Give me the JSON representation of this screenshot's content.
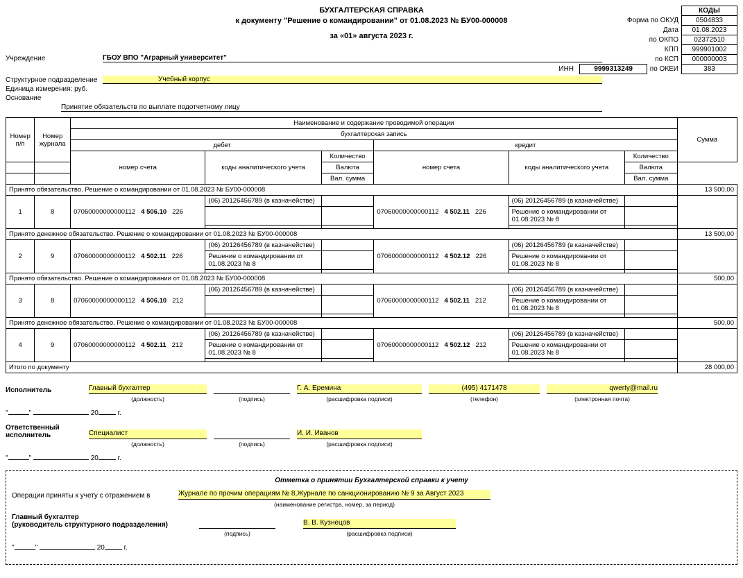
{
  "title": {
    "line1": "БУХГАЛТЕРСКАЯ СПРАВКА",
    "line2": "к документу \"Решение о командировании\" от 01.08.2023 № БУ00-000008",
    "line3": "за «01» августа 2023 г."
  },
  "codes": {
    "header": "КОДЫ",
    "okud_label": "Форма по ОКУД",
    "okud": "0504833",
    "date_label": "Дата",
    "date": "01.08.2023",
    "okpo_label": "по ОКПО",
    "okpo": "02372510",
    "kpp_label": "КПП",
    "kpp": "999901002",
    "ksp_label": "по КСП",
    "ksp": "000000003",
    "okei_label": "по ОКЕИ",
    "okei": "383"
  },
  "org": {
    "uchr_label": "Учреждение",
    "uchr": "ГБОУ ВПО \"Аграрный университет\"",
    "inn_label": "ИНН",
    "inn": "9999313249",
    "struct_label": "Структурное подразделение",
    "struct": "Учебный корпус",
    "unit_label": "Единица измерения: руб.",
    "osnov_label": "Основание",
    "osnov": "Принятие обязательств по выплате подотчетному лицу"
  },
  "th": {
    "naim": "Наименование и содержание проводимой операции",
    "zapis": "бухгалтерская запись",
    "np": "Номер п/п",
    "nj": "Номер журнала",
    "debet": "дебет",
    "kredit": "кредит",
    "summa": "Сумма",
    "ns": "номер счета",
    "kau": "коды аналитического учета",
    "kol": "Количество",
    "val": "Валюта",
    "vs": "Вал. сумма"
  },
  "groups": [
    {
      "title": "Принято обязательство. Решение о командировании от 01.08.2023 № БУ00-000008",
      "sum": "13 500,00",
      "rows": [
        {
          "np": "1",
          "nj": "8",
          "d_acc": "07060000000000112",
          "d_sub": "4 506.10",
          "d_grp": "226",
          "d_kau": [
            "(06) 20126456789 (в казначействе)",
            "",
            ""
          ],
          "k_acc": "07060000000000112",
          "k_sub": "4 502.11",
          "k_grp": "226",
          "k_kau": [
            "(06) 20126456789 (в казначействе)",
            "Решение о командировании от 01.08.2023 № 8",
            ""
          ]
        }
      ]
    },
    {
      "title": "Принято денежное обязательство. Решение о командировании от 01.08.2023 № БУ00-000008",
      "sum": "13 500,00",
      "rows": [
        {
          "np": "2",
          "nj": "9",
          "d_acc": "07060000000000112",
          "d_sub": "4 502.11",
          "d_grp": "226",
          "d_kau": [
            "(06) 20126456789 (в казначействе)",
            "Решение о командировании от 01.08.2023 № 8",
            ""
          ],
          "k_acc": "07060000000000112",
          "k_sub": "4 502.12",
          "k_grp": "226",
          "k_kau": [
            "(06) 20126456789 (в казначействе)",
            "Решение о командировании от 01.08.2023 № 8",
            ""
          ]
        }
      ]
    },
    {
      "title": "Принято обязательство. Решение о командировании от 01.08.2023 № БУ00-000008",
      "sum": "500,00",
      "rows": [
        {
          "np": "3",
          "nj": "8",
          "d_acc": "07060000000000112",
          "d_sub": "4 506.10",
          "d_grp": "212",
          "d_kau": [
            "(06) 20126456789 (в казначействе)",
            "",
            ""
          ],
          "k_acc": "07060000000000112",
          "k_sub": "4 502.11",
          "k_grp": "212",
          "k_kau": [
            "(06) 20126456789 (в казначействе)",
            "Решение о командировании от 01.08.2023 № 8",
            ""
          ]
        }
      ]
    },
    {
      "title": "Принято денежное обязательство. Решение о командировании от 01.08.2023 № БУ00-000008",
      "sum": "500,00",
      "rows": [
        {
          "np": "4",
          "nj": "9",
          "d_acc": "07060000000000112",
          "d_sub": "4 502.11",
          "d_grp": "212",
          "d_kau": [
            "(06) 20126456789 (в казначействе)",
            "Решение о командировании от 01.08.2023 № 8",
            ""
          ],
          "k_acc": "07060000000000112",
          "k_sub": "4 502.12",
          "k_grp": "212",
          "k_kau": [
            "(06) 20126456789 (в казначействе)",
            "Решение о командировании от 01.08.2023 № 8",
            ""
          ]
        }
      ]
    }
  ],
  "total": {
    "label": "Итого по документу",
    "sum": "28 000,00"
  },
  "sig": {
    "isp_label": "Исполнитель",
    "isp_post": "Главный бухгалтер",
    "isp_name": "Г. А. Еремина",
    "isp_phone": "(495) 4171478",
    "isp_email": "qwerty@mail.ru",
    "otv_label": "Ответственный исполнитель",
    "otv_post": "Специалист",
    "otv_name": "И. И. Иванов",
    "cap_post": "(должность)",
    "cap_sign": "(подпись)",
    "cap_name": "(расшифровка подписи)",
    "cap_phone": "(телефон)",
    "cap_email": "(электронная почта)",
    "year_suffix": "г.",
    "year_prefix": "20",
    "quote": "\"",
    "dash_sep": "________"
  },
  "accept": {
    "title": "Отметка о принятии Бухгалтерской справки к учету",
    "line1_label": "Операции приняты к учету с отражением в",
    "line1_val": "Журнале по прочим операциям № 8,Журнале по санкционированию № 9 за Август 2023",
    "cap_reg": "(наименование регистра, номер, за период)",
    "gb_label": "Главный бухгалтер",
    "gb_sub": "(руководитель структурного подразделения)",
    "gb_name": "В. В. Кузнецов"
  }
}
